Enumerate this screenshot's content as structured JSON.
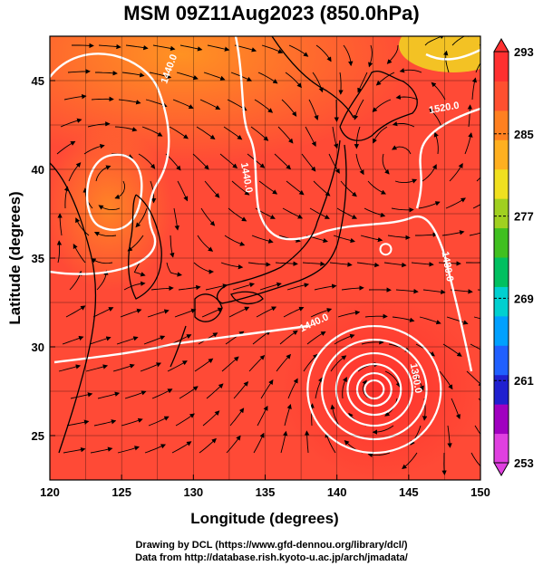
{
  "title": "MSM 09Z11Aug2023 (850.0hPa)",
  "credits": {
    "line1": "Drawing by DCL (https://www.gfd-dennou.org/library/dcl/)",
    "line2": "Data from http://database.rish.kyoto-u.ac.jp/arch/jmadata/"
  },
  "chart_data": {
    "type": "heatmap",
    "title": "MSM 09Z11Aug2023 (850.0hPa)",
    "xlabel": "Longitude (degrees)",
    "ylabel": "Latitude  (degrees)",
    "xlim": [
      120,
      150
    ],
    "ylim": [
      22.5,
      47.5
    ],
    "x_ticks": [
      120,
      125,
      130,
      135,
      140,
      145,
      150
    ],
    "y_ticks": [
      25,
      30,
      35,
      40,
      45
    ],
    "grid": true,
    "colorbar": {
      "range": [
        253,
        293
      ],
      "ticks": [
        253,
        261,
        269,
        277,
        285,
        293
      ],
      "colors": [
        "#e040e0",
        "#a000c0",
        "#2020d0",
        "#2060ff",
        "#00a0ff",
        "#00d0d0",
        "#00c060",
        "#40c020",
        "#a0d020",
        "#f0e020",
        "#ffb020",
        "#ff8020",
        "#ff5030",
        "#ff3030"
      ]
    },
    "contour_labels": [
      {
        "text": "1440.0",
        "lon": 128.5,
        "lat": 45.6,
        "angle": -70
      },
      {
        "text": "1440.0",
        "lon": 133.5,
        "lat": 39.5,
        "angle": 80
      },
      {
        "text": "1520.0",
        "lon": 147.5,
        "lat": 43.3,
        "angle": -10
      },
      {
        "text": "1480.0",
        "lon": 147.5,
        "lat": 34.5,
        "angle": 80
      },
      {
        "text": "1440.0",
        "lon": 138.5,
        "lat": 31.2,
        "angle": -25
      },
      {
        "text": "1360.0",
        "lon": 145.3,
        "lat": 28.2,
        "angle": 80
      }
    ]
  }
}
